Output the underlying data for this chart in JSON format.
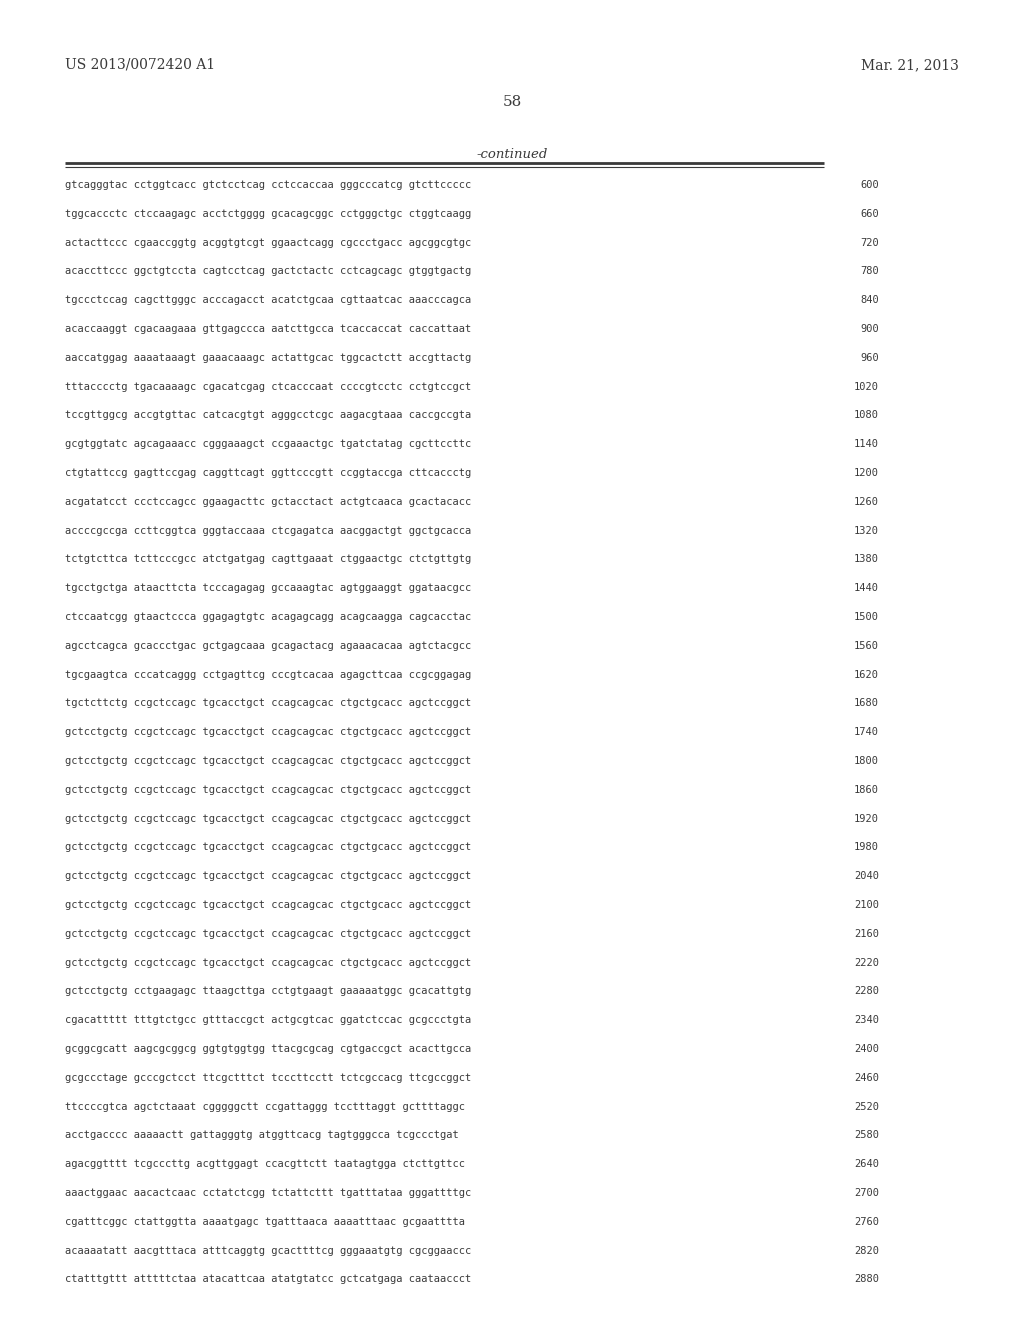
{
  "header_left": "US 2013/0072420 A1",
  "header_right": "Mar. 21, 2013",
  "page_number": "58",
  "continued_label": "-continued",
  "background_color": "#ffffff",
  "text_color": "#3a3a3a",
  "sequence_lines": [
    [
      "gtcagggtac cctggtcacc gtctcctcag cctccaccaa gggcccatcg gtcttccccc",
      "600"
    ],
    [
      "tggcaccctc ctccaagagc acctctgggg gcacagcggc cctgggctgc ctggtcaagg",
      "660"
    ],
    [
      "actacttccc cgaaccggtg acggtgtcgt ggaactcagg cgccctgacc agcggcgtgc",
      "720"
    ],
    [
      "acaccttccc ggctgtccta cagtcctcag gactctactc cctcagcagc gtggtgactg",
      "780"
    ],
    [
      "tgccctccag cagcttgggc acccagacct acatctgcaa cgttaatcac aaacccagca",
      "840"
    ],
    [
      "acaccaaggt cgacaagaaa gttgagccca aatcttgcca tcaccaccat caccattaat",
      "900"
    ],
    [
      "aaccatggag aaaataaagt gaaacaaagc actattgcac tggcactctt accgttactg",
      "960"
    ],
    [
      "tttacccctg tgacaaaagc cgacatcgag ctcacccaat ccccgtcctc cctgtccgct",
      "1020"
    ],
    [
      "tccgttggcg accgtgttac catcacgtgt agggcctcgc aagacgtaaa caccgccgta",
      "1080"
    ],
    [
      "gcgtggtatc agcagaaacc cgggaaagct ccgaaactgc tgatctatag cgcttccttc",
      "1140"
    ],
    [
      "ctgtattccg gagttccgag caggttcagt ggttcccgtt ccggtaccga cttcaccctg",
      "1200"
    ],
    [
      "acgatatcct ccctccagcc ggaagacttc gctacctact actgtcaaca gcactacacc",
      "1260"
    ],
    [
      "accccgccga ccttcggtca gggtaccaaa ctcgagatca aacggactgt ggctgcacca",
      "1320"
    ],
    [
      "tctgtcttca tcttcccgcc atctgatgag cagttgaaat ctggaactgc ctctgttgtg",
      "1380"
    ],
    [
      "tgcctgctga ataacttcta tcccagagag gccaaagtac agtggaaggt ggataacgcc",
      "1440"
    ],
    [
      "ctccaatcgg gtaactccca ggagagtgtc acagagcagg acagcaagga cagcacctac",
      "1500"
    ],
    [
      "agcctcagca gcaccctgac gctgagcaaa gcagactacg agaaacacaa agtctacgcc",
      "1560"
    ],
    [
      "tgcgaagtca cccatcaggg cctgagttcg cccgtcacaa agagcttcaa ccgcggagag",
      "1620"
    ],
    [
      "tgctcttctg ccgctccagc tgcacctgct ccagcagcac ctgctgcacc agctccggct",
      "1680"
    ],
    [
      "gctcctgctg ccgctccagc tgcacctgct ccagcagcac ctgctgcacc agctccggct",
      "1740"
    ],
    [
      "gctcctgctg ccgctccagc tgcacctgct ccagcagcac ctgctgcacc agctccggct",
      "1800"
    ],
    [
      "gctcctgctg ccgctccagc tgcacctgct ccagcagcac ctgctgcacc agctccggct",
      "1860"
    ],
    [
      "gctcctgctg ccgctccagc tgcacctgct ccagcagcac ctgctgcacc agctccggct",
      "1920"
    ],
    [
      "gctcctgctg ccgctccagc tgcacctgct ccagcagcac ctgctgcacc agctccggct",
      "1980"
    ],
    [
      "gctcctgctg ccgctccagc tgcacctgct ccagcagcac ctgctgcacc agctccggct",
      "2040"
    ],
    [
      "gctcctgctg ccgctccagc tgcacctgct ccagcagcac ctgctgcacc agctccggct",
      "2100"
    ],
    [
      "gctcctgctg ccgctccagc tgcacctgct ccagcagcac ctgctgcacc agctccggct",
      "2160"
    ],
    [
      "gctcctgctg ccgctccagc tgcacctgct ccagcagcac ctgctgcacc agctccggct",
      "2220"
    ],
    [
      "gctcctgctg cctgaagagc ttaagcttga cctgtgaagt gaaaaatggc gcacattgtg",
      "2280"
    ],
    [
      "cgacattttt tttgtctgcc gtttaccgct actgcgtcac ggatctccac gcgccctgta",
      "2340"
    ],
    [
      "gcggcgcatt aagcgcggcg ggtgtggtgg ttacgcgcag cgtgaccgct acacttgcca",
      "2400"
    ],
    [
      "gcgccctage gcccgctcct ttcgctttct tcccttcctt tctcgccacg ttcgccggct",
      "2460"
    ],
    [
      "ttccccgtca agctctaaat cgggggctt ccgattaggg tcctttaggt gcttttaggc",
      "2520"
    ],
    [
      "acctgacccc aaaaactt gattagggtg atggttcacg tagtgggcca tcgccctgat",
      "2580"
    ],
    [
      "agacggtttt tcgcccttg acgttggagt ccacgttctt taatagtgga ctcttgttcc",
      "2640"
    ],
    [
      "aaactggaac aacactcaac cctatctcgg tctattcttt tgatttataa gggattttgc",
      "2700"
    ],
    [
      "cgatttcggc ctattggtta aaaatgagc tgatttaaca aaaatttaac gcgaatttta",
      "2760"
    ],
    [
      "acaaaatatt aacgtttaca atttcaggtg gcacttttcg gggaaatgtg cgcggaaccc",
      "2820"
    ],
    [
      "ctatttgttt atttttctaa atacattcaa atatgtatcc gctcatgaga caataaccct",
      "2880"
    ]
  ]
}
